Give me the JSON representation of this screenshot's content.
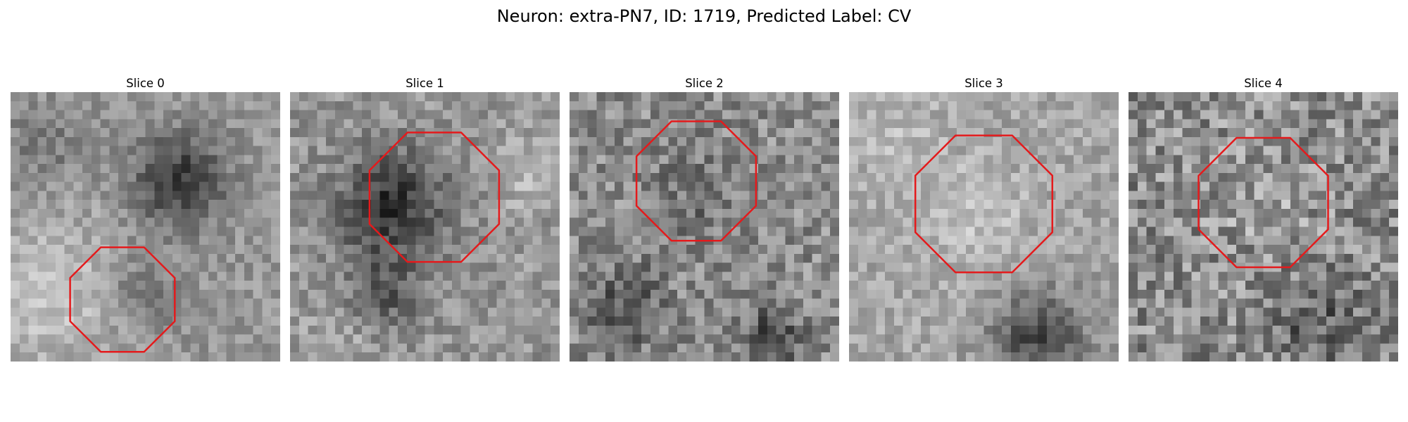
{
  "figure": {
    "title": "Neuron: extra-PN7, ID: 1719, Predicted Label: CV",
    "grid_size": 30,
    "outline_color": "#e41a1c",
    "colormap": "gray",
    "panels": [
      {
        "title": "Slice 0"
      },
      {
        "title": "Slice 1"
      },
      {
        "title": "Slice 2"
      },
      {
        "title": "Slice 3"
      },
      {
        "title": "Slice 4"
      }
    ]
  }
}
